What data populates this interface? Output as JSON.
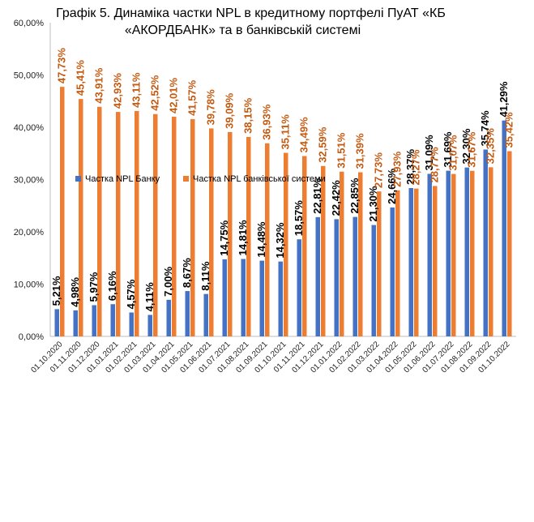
{
  "chart_data": {
    "type": "bar",
    "title_line1": "Графік 5. Динаміка частки NPL в кредитному портфелі ПуАТ «КБ",
    "title_line2": "«АКОРДБАНК»  та в банківській системі",
    "ylim": [
      0,
      60
    ],
    "yticks": [
      "0,00%",
      "10,00%",
      "20,00%",
      "30,00%",
      "40,00%",
      "50,00%",
      "60,00%"
    ],
    "grid": false,
    "legend_position": "middle",
    "categories": [
      "01.10.2020",
      "01.11.2020",
      "01.12.2020",
      "01.01.2021",
      "01.02.2021",
      "01.03.2021",
      "01.04.2021",
      "01.05.2021",
      "01.06.2021",
      "01.07.2021",
      "01.08.2021",
      "01.09.2021",
      "01.10.2021",
      "01.11.2021",
      "01.12.2021",
      "01.01.2022",
      "01.02.2022",
      "01.03.2022",
      "01.04.2022",
      "01.05.2022",
      "01.06.2022",
      "01.07.2022",
      "01.08.2022",
      "01.09.2022",
      "01.10.2022"
    ],
    "series": [
      {
        "name": "Частка NPL Банку",
        "color": "#4472c4",
        "values": [
          5.21,
          4.98,
          5.97,
          6.16,
          4.57,
          4.11,
          7.0,
          8.67,
          8.11,
          14.75,
          14.81,
          14.48,
          14.32,
          18.57,
          22.81,
          22.42,
          22.85,
          21.3,
          24.66,
          28.37,
          31.09,
          31.69,
          32.3,
          35.74,
          41.29
        ],
        "labels": [
          "5,21%",
          "4,98%",
          "5,97%",
          "6,16%",
          "4,57%",
          "4,11%",
          "7,00%",
          "8,67%",
          "8,11%",
          "14,75%",
          "14,81%",
          "14,48%",
          "14,32%",
          "18,57%",
          "22,81%",
          "22,42%",
          "22,85%",
          "21,30%",
          "24,66%",
          "28,37%",
          "31,09%",
          "31,69%",
          "32,30%",
          "35,74%",
          "41,29%"
        ]
      },
      {
        "name": "Частка NPL банківської системи",
        "color": "#ed7d31",
        "values": [
          47.73,
          45.41,
          43.91,
          42.93,
          43.11,
          42.52,
          42.01,
          41.57,
          39.78,
          39.09,
          38.15,
          36.93,
          35.11,
          34.49,
          32.59,
          31.51,
          31.39,
          27.73,
          27.93,
          28.27,
          28.77,
          31.07,
          31.67,
          32.35,
          35.42
        ],
        "labels": [
          "47,73%",
          "45,41%",
          "43,91%",
          "42,93%",
          "43,11%",
          "42,52%",
          "42,01%",
          "41,57%",
          "39,78%",
          "39,09%",
          "38,15%",
          "36,93%",
          "35,11%",
          "34,49%",
          "32,59%",
          "31,51%",
          "31,39%",
          "27,73%",
          "27,93%",
          "28,27%",
          "28,77%",
          "31,07%",
          "31,67%",
          "32,35%",
          "35,42%"
        ]
      }
    ]
  }
}
